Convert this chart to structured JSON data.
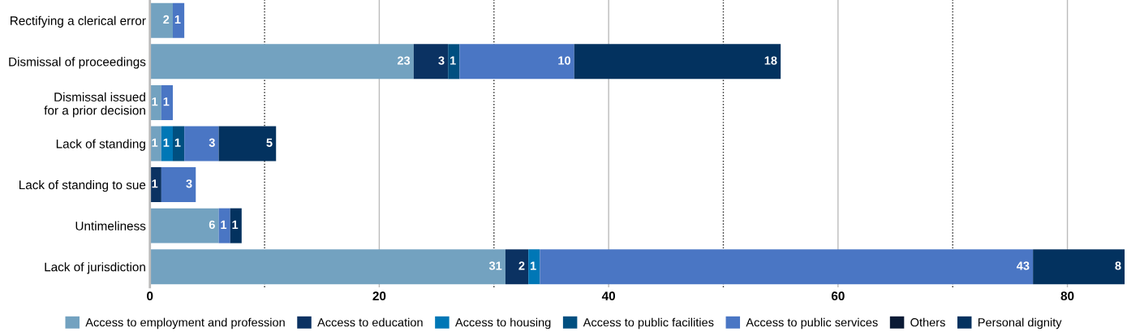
{
  "chart_data": {
    "type": "bar",
    "orientation": "horizontal",
    "stacked": true,
    "categories": [
      "Rectifying a clerical error",
      "Dismissal of proceedings",
      "Dismissal issued\nfor a prior decision",
      "Lack of standing",
      "Lack of standing to sue",
      "Untimeliness",
      "Lack of jurisdiction"
    ],
    "series": [
      {
        "name": "Access to employment and profession",
        "color": "#73a2c0",
        "values": [
          2,
          23,
          1,
          1,
          null,
          6,
          31
        ]
      },
      {
        "name": "Access to education",
        "color": "#0b3262",
        "values": [
          null,
          3,
          null,
          null,
          1,
          null,
          2
        ]
      },
      {
        "name": "Access to housing",
        "color": "#0077b6",
        "values": [
          null,
          null,
          null,
          1,
          null,
          null,
          1
        ]
      },
      {
        "name": "Access to public facilities",
        "color": "#004f80",
        "values": [
          null,
          1,
          null,
          1,
          null,
          null,
          null
        ]
      },
      {
        "name": "Access to public services",
        "color": "#4a76c4",
        "values": [
          1,
          10,
          1,
          3,
          3,
          1,
          43
        ]
      },
      {
        "name": "Others",
        "color": "#0a1a35",
        "values": [
          null,
          null,
          null,
          null,
          null,
          null,
          null
        ]
      },
      {
        "name": "Personal dignity",
        "color": "#03325f",
        "values": [
          null,
          18,
          null,
          5,
          null,
          1,
          8
        ]
      }
    ],
    "xlim": [
      0,
      85
    ],
    "xticks": [
      0,
      20,
      40,
      60,
      80
    ],
    "grid": "x",
    "data_labels": true,
    "legend": "bottom",
    "ref_lines": [
      {
        "axis": "x",
        "value": 10,
        "line_style": "dotted",
        "color": "#222222"
      },
      {
        "axis": "x",
        "value": 30,
        "line_style": "dotted",
        "color": "#222222"
      },
      {
        "axis": "x",
        "value": 50,
        "line_style": "dotted",
        "color": "#222222"
      },
      {
        "axis": "x",
        "value": 70,
        "line_style": "dotted",
        "color": "#222222"
      }
    ]
  }
}
